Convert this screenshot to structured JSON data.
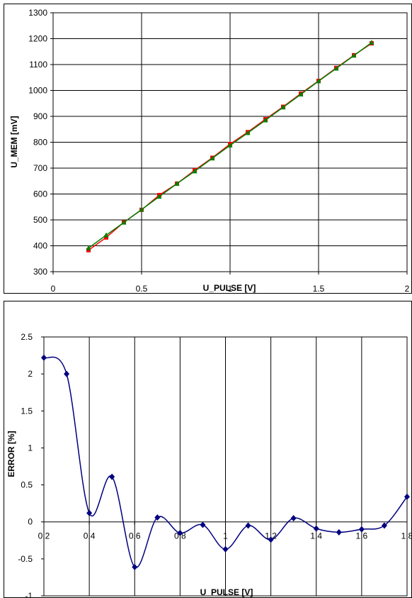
{
  "chart_data": [
    {
      "type": "line",
      "title": "",
      "xlabel": "U_PULSE [V]",
      "ylabel": "U_MEM [mV]",
      "xlim": [
        0,
        2
      ],
      "ylim": [
        300,
        1300
      ],
      "x_ticks": [
        "0",
        "0.5",
        "1",
        "1.5",
        "2"
      ],
      "y_ticks": [
        "300",
        "400",
        "500",
        "600",
        "700",
        "800",
        "900",
        "1000",
        "1100",
        "1200",
        "1300"
      ],
      "grid": true,
      "legend": "none",
      "x": [
        0.2,
        0.3,
        0.4,
        0.5,
        0.6,
        0.7,
        0.8,
        0.9,
        1.0,
        1.1,
        1.2,
        1.3,
        1.4,
        1.5,
        1.6,
        1.7,
        1.8
      ],
      "series": [
        {
          "color": "#ff0000",
          "marker": "square",
          "values": [
            383,
            432,
            491,
            539,
            596,
            640,
            692,
            740,
            793,
            839,
            889,
            937,
            988,
            1037,
            1087,
            1136,
            1182
          ]
        },
        {
          "color": "#008000",
          "marker": "triangle",
          "values": [
            391,
            441,
            490,
            540,
            590,
            640,
            688,
            738,
            788,
            836,
            885,
            935,
            985,
            1036,
            1085,
            1135,
            1185
          ]
        }
      ]
    },
    {
      "type": "line",
      "title": "",
      "xlabel": "U_PULSE [V]",
      "ylabel": "ERROR [%]",
      "xlim": [
        0.2,
        1.8
      ],
      "ylim": [
        -1,
        2.5
      ],
      "x_ticks": [
        "0.2",
        "0.4",
        "0.6",
        "0.8",
        "1",
        "1.2",
        "1.4",
        "1.6",
        "1.8"
      ],
      "y_ticks": [
        "-1",
        "-0.5",
        "0",
        "0.5",
        "1",
        "1.5",
        "2",
        "2.5"
      ],
      "grid": true,
      "legend": "none",
      "x": [
        0.2,
        0.3,
        0.4,
        0.5,
        0.6,
        0.7,
        0.8,
        0.9,
        1.0,
        1.1,
        1.2,
        1.3,
        1.4,
        1.5,
        1.6,
        1.7,
        1.8
      ],
      "series": [
        {
          "color": "#000080",
          "marker": "diamond",
          "smooth": true,
          "values": [
            2.22,
            2.0,
            0.12,
            0.61,
            -0.61,
            0.06,
            -0.15,
            -0.04,
            -0.37,
            -0.05,
            -0.24,
            0.05,
            -0.09,
            -0.14,
            -0.1,
            -0.05,
            0.34
          ]
        }
      ]
    }
  ]
}
